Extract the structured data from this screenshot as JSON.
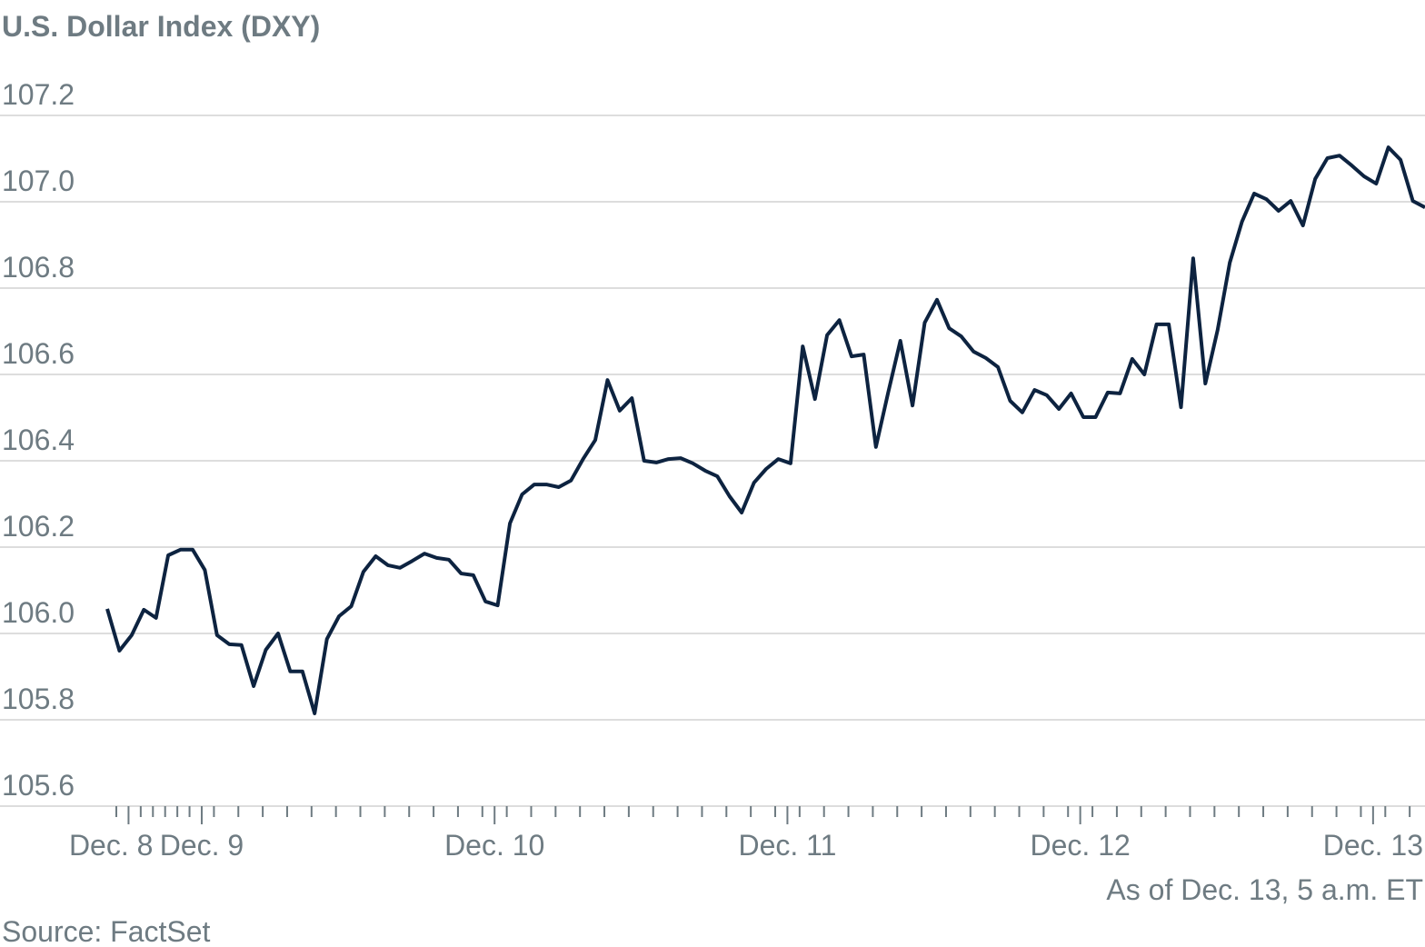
{
  "chart_data": {
    "type": "line",
    "title": "U.S. Dollar Index (DXY)",
    "note": "As of Dec. 13, 5 a.m. ET",
    "source": "Source: FactSet",
    "categories": [
      null,
      "Dec. 8",
      null,
      null,
      null,
      null,
      null,
      "Dec. 9",
      null,
      null,
      null,
      null,
      null,
      null,
      null,
      null,
      null,
      null,
      null,
      null,
      null,
      null,
      null,
      null,
      null,
      null,
      null,
      null,
      null,
      null,
      null,
      "Dec. 10",
      null,
      null,
      null,
      null,
      null,
      null,
      null,
      null,
      null,
      null,
      null,
      null,
      null,
      null,
      null,
      null,
      null,
      null,
      null,
      null,
      null,
      null,
      null,
      "Dec. 11",
      null,
      null,
      null,
      null,
      null,
      null,
      null,
      null,
      null,
      null,
      null,
      null,
      null,
      null,
      null,
      null,
      null,
      null,
      null,
      null,
      null,
      null,
      null,
      "Dec. 12",
      null,
      null,
      null,
      null,
      null,
      null,
      null,
      null,
      null,
      null,
      null,
      null,
      null,
      null,
      null,
      null,
      null,
      null,
      null,
      null,
      null,
      null,
      null,
      "Dec. 13",
      null,
      null,
      null,
      null,
      null
    ],
    "series": [
      {
        "name": "DXY",
        "color": "#0d2340",
        "values": [
          106.057,
          105.96,
          105.996,
          106.055,
          106.036,
          106.181,
          106.194,
          106.194,
          106.147,
          105.996,
          105.975,
          105.973,
          105.878,
          105.962,
          106.0,
          105.912,
          105.912,
          105.815,
          105.987,
          106.04,
          106.063,
          106.143,
          106.179,
          106.158,
          106.152,
          106.168,
          106.185,
          106.175,
          106.171,
          106.139,
          106.135,
          106.074,
          106.065,
          106.255,
          106.322,
          106.345,
          106.345,
          106.339,
          106.354,
          106.404,
          106.448,
          106.587,
          106.516,
          106.545,
          106.4,
          106.396,
          106.404,
          106.406,
          106.394,
          106.377,
          106.364,
          106.318,
          106.28,
          106.349,
          106.381,
          106.404,
          106.394,
          106.665,
          106.543,
          106.691,
          106.726,
          106.642,
          106.646,
          106.432,
          106.558,
          106.678,
          106.528,
          106.72,
          106.773,
          106.707,
          106.688,
          106.653,
          106.638,
          106.617,
          106.539,
          106.512,
          106.564,
          106.552,
          106.52,
          106.556,
          106.501,
          106.501,
          106.558,
          106.556,
          106.636,
          106.6,
          106.716,
          106.716,
          106.524,
          106.869,
          106.579,
          106.703,
          106.859,
          106.954,
          107.019,
          107.006,
          106.979,
          107.002,
          106.945,
          107.053,
          107.101,
          107.107,
          107.084,
          107.059,
          107.042,
          107.126,
          107.097,
          107.002,
          106.987
        ]
      }
    ],
    "ylim": [
      105.6,
      107.2
    ],
    "yticks": [
      105.6,
      105.8,
      {
        "value": 106,
        "label": "106.0"
      },
      106.2,
      106.4,
      106.6,
      106.8,
      {
        "value": 107,
        "label": "107.0"
      },
      107.2
    ],
    "grid": true
  }
}
